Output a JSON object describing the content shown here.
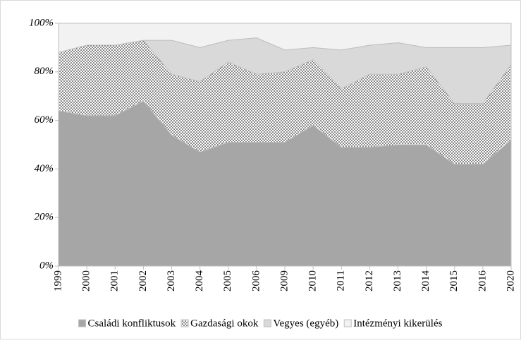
{
  "chart_data": {
    "type": "stacked_area",
    "categories": [
      "1999",
      "2000",
      "2001",
      "2002",
      "2003",
      "2004",
      "2005",
      "2006",
      "2009",
      "2010",
      "2011",
      "2012",
      "2013",
      "2014",
      "2015",
      "2016",
      "2020"
    ],
    "series": [
      {
        "name": "Családi konfliktusok",
        "color": "#a6a6a6",
        "values": [
          64,
          62,
          62,
          68,
          54,
          47,
          51,
          51,
          51,
          58,
          49,
          49,
          50,
          50,
          42,
          42,
          52
        ]
      },
      {
        "name": "Gazdasági okok",
        "color": "#ffffff",
        "pattern": "dots",
        "values": [
          24,
          29,
          29,
          25,
          25,
          29,
          33,
          28,
          29,
          27,
          24,
          30,
          29,
          32,
          25,
          25,
          31
        ]
      },
      {
        "name": "Vegyes (egyéb)",
        "color": "#d9d9d9",
        "values": [
          0,
          0,
          0,
          0,
          14,
          14,
          9,
          15,
          9,
          5,
          16,
          12,
          13,
          8,
          23,
          23,
          8
        ]
      },
      {
        "name": "Intézményi kikerülés",
        "color": "#f2f2f2",
        "values": [
          12,
          9,
          9,
          7,
          7,
          10,
          7,
          6,
          11,
          10,
          11,
          9,
          8,
          10,
          10,
          10,
          9
        ]
      }
    ],
    "ylim": [
      0,
      100
    ],
    "yticks": [
      {
        "value": 0,
        "label": "0%"
      },
      {
        "value": 20,
        "label": "20%"
      },
      {
        "value": 40,
        "label": "40%"
      },
      {
        "value": 60,
        "label": "60%"
      },
      {
        "value": 80,
        "label": "80%"
      },
      {
        "value": 100,
        "label": "100%"
      }
    ],
    "grid": false,
    "legend": "bottom"
  }
}
